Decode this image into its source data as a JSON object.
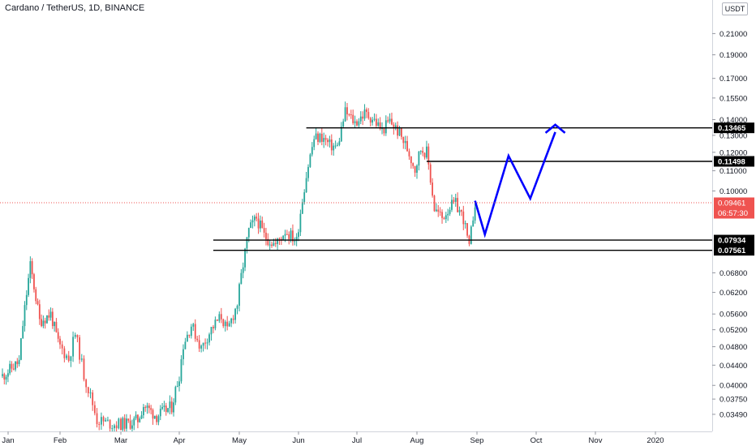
{
  "header": {
    "title": "Cardano / TetherUS, 1D, BINANCE",
    "currency_button": "USDT"
  },
  "colors": {
    "up": "#26a69a",
    "down": "#ef5350",
    "level_line": "#000000",
    "projection": "#0000ff",
    "last_price_bg": "#ef5350",
    "price_line": "#ef5350"
  },
  "chart_data": {
    "type": "candlestick",
    "title": "Cardano / TetherUS, 1D, BINANCE",
    "y_axis": {
      "scale": "log",
      "range": [
        0.0332,
        0.246
      ],
      "ticks": [
        "0.21000",
        "0.19000",
        "0.17000",
        "0.15500",
        "0.14000",
        "0.13000",
        "0.12000",
        "0.11000",
        "0.10000",
        "0.06800",
        "0.06200",
        "0.05600",
        "0.05200",
        "0.04800",
        "0.04400",
        "0.04000",
        "0.03750",
        "0.03490"
      ]
    },
    "x_axis": {
      "ticks": [
        "Jan",
        "Feb",
        "Mar",
        "Apr",
        "May",
        "Jun",
        "Jul",
        "Aug",
        "Sep",
        "Oct",
        "Nov",
        "2020"
      ]
    },
    "price_path": [
      [
        "2019-01-01",
        0.0418
      ],
      [
        "2019-01-10",
        0.0447
      ],
      [
        "2019-01-16",
        0.0702
      ],
      [
        "2019-01-21",
        0.0541
      ],
      [
        "2019-01-27",
        0.056
      ],
      [
        "2019-01-31",
        0.0488
      ],
      [
        "2019-02-05",
        0.0452
      ],
      [
        "2019-02-08",
        0.051
      ],
      [
        "2019-02-12",
        0.042
      ],
      [
        "2019-02-18",
        0.034
      ],
      [
        "2019-02-25",
        0.0333
      ],
      [
        "2019-03-05",
        0.0334
      ],
      [
        "2019-03-10",
        0.034
      ],
      [
        "2019-03-13",
        0.0364
      ],
      [
        "2019-03-20",
        0.0346
      ],
      [
        "2019-03-28",
        0.0362
      ],
      [
        "2019-04-01",
        0.042
      ],
      [
        "2019-04-03",
        0.0485
      ],
      [
        "2019-04-07",
        0.0532
      ],
      [
        "2019-04-12",
        0.0476
      ],
      [
        "2019-04-17",
        0.0522
      ],
      [
        "2019-04-22",
        0.0554
      ],
      [
        "2019-04-25",
        0.0515
      ],
      [
        "2019-04-30",
        0.0588
      ],
      [
        "2019-05-03",
        0.0707
      ],
      [
        "2019-05-06",
        0.083
      ],
      [
        "2019-05-10",
        0.088
      ],
      [
        "2019-05-14",
        0.081
      ],
      [
        "2019-05-20",
        0.0775
      ],
      [
        "2019-05-25",
        0.083
      ],
      [
        "2019-05-31",
        0.079
      ],
      [
        "2019-06-03",
        0.0965
      ],
      [
        "2019-06-06",
        0.113
      ],
      [
        "2019-06-09",
        0.128
      ],
      [
        "2019-06-13",
        0.129
      ],
      [
        "2019-06-17",
        0.124
      ],
      [
        "2019-06-21",
        0.123
      ],
      [
        "2019-06-25",
        0.145
      ],
      [
        "2019-06-30",
        0.138
      ],
      [
        "2019-07-05",
        0.144
      ],
      [
        "2019-07-09",
        0.141
      ],
      [
        "2019-07-14",
        0.133
      ],
      [
        "2019-07-18",
        0.139
      ],
      [
        "2019-07-23",
        0.131
      ],
      [
        "2019-07-27",
        0.122
      ],
      [
        "2019-07-31",
        0.111
      ],
      [
        "2019-08-03",
        0.122
      ],
      [
        "2019-08-06",
        0.12
      ],
      [
        "2019-08-10",
        0.092
      ],
      [
        "2019-08-14",
        0.088
      ],
      [
        "2019-08-18",
        0.093
      ],
      [
        "2019-08-21",
        0.094
      ],
      [
        "2019-08-25",
        0.088
      ],
      [
        "2019-08-28",
        0.076
      ],
      [
        "2019-08-31",
        0.0952
      ]
    ],
    "horizontal_levels": [
      {
        "label": "0.13465",
        "value": 0.13465
      },
      {
        "label": "0.11498",
        "value": 0.11498
      },
      {
        "label": "0.07934",
        "value": 0.07934
      },
      {
        "label": "0.07561",
        "value": 0.07561
      }
    ],
    "last_price": {
      "label": "0.09461",
      "value": 0.09461,
      "countdown": "06:57:30"
    },
    "projection_path": [
      [
        "2019-08-31",
        0.0955
      ],
      [
        "2019-09-05",
        0.0815
      ],
      [
        "2019-09-17",
        0.118
      ],
      [
        "2019-09-28",
        0.0965
      ],
      [
        "2019-10-11",
        0.132
      ]
    ]
  }
}
